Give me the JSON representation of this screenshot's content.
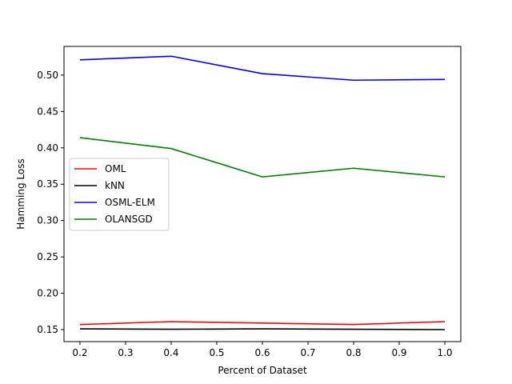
{
  "chart_data": {
    "type": "line",
    "title": "",
    "xlabel": "Percent of Dataset",
    "ylabel": "Hamming Loss",
    "x": [
      0.2,
      0.4,
      0.6,
      0.8,
      1.0
    ],
    "xlim": [
      0.165,
      1.035
    ],
    "ylim": [
      0.1335,
      0.5395
    ],
    "xticks": [
      "0.2",
      "0.3",
      "0.4",
      "0.5",
      "0.6",
      "0.7",
      "0.8",
      "0.9",
      "1.0"
    ],
    "yticks": [
      "0.15",
      "0.20",
      "0.25",
      "0.30",
      "0.35",
      "0.40",
      "0.45",
      "0.50"
    ],
    "grid": false,
    "legend_position": "center-left",
    "series": [
      {
        "name": "OML",
        "color": "#ff0000",
        "values": [
          0.157,
          0.161,
          0.159,
          0.157,
          0.161
        ]
      },
      {
        "name": "kNN",
        "color": "#000000",
        "values": [
          0.151,
          0.1505,
          0.151,
          0.1505,
          0.15
        ]
      },
      {
        "name": "OSML-ELM",
        "color": "#0000ff",
        "values": [
          0.521,
          0.526,
          0.502,
          0.493,
          0.494
        ]
      },
      {
        "name": "OLANSGD",
        "color": "#008000",
        "values": [
          0.414,
          0.399,
          0.36,
          0.372,
          0.36
        ]
      }
    ]
  }
}
